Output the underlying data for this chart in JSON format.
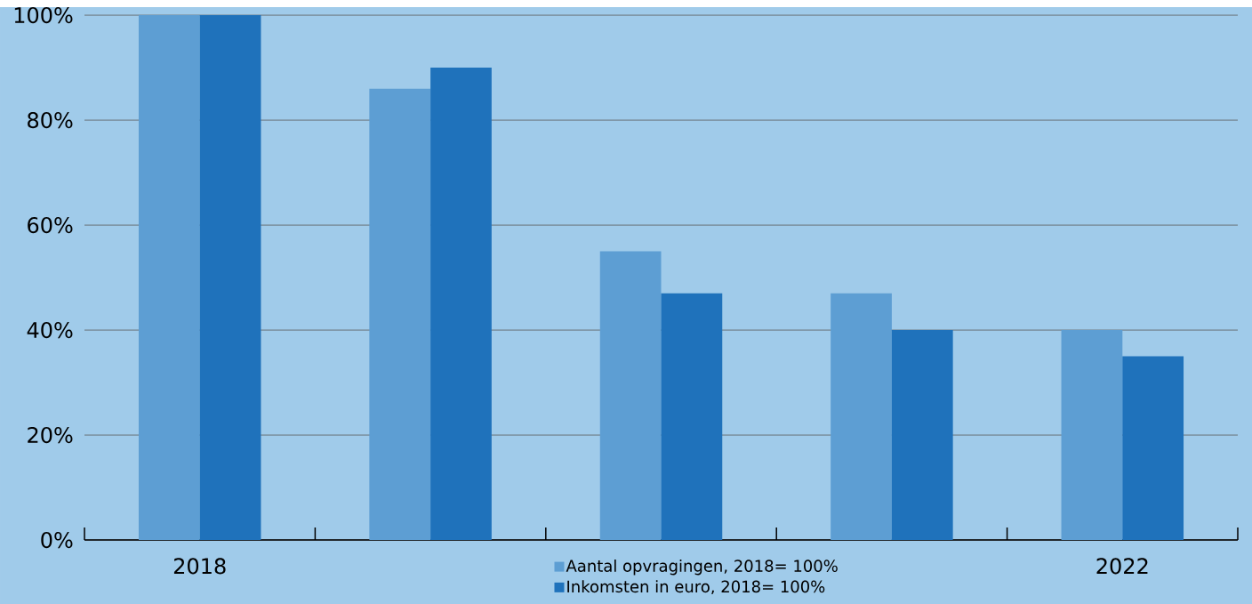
{
  "chart_data": {
    "type": "bar",
    "categories": [
      "2018",
      null,
      null,
      null,
      "2022"
    ],
    "series": [
      {
        "name": "Aantal opvragingen, 2018= 100%",
        "color": "#5d9ed3",
        "values": [
          100,
          86,
          55,
          47,
          40
        ]
      },
      {
        "name": "Inkomsten in euro, 2018= 100%",
        "color": "#1f72bb",
        "values": [
          100,
          90,
          47,
          40,
          35
        ]
      }
    ],
    "ylim": [
      0,
      100
    ],
    "yticks": [
      {
        "value": 0,
        "label": "0%"
      },
      {
        "value": 20,
        "label": "20%"
      },
      {
        "value": 40,
        "label": "40%"
      },
      {
        "value": 60,
        "label": "60%"
      },
      {
        "value": 80,
        "label": "80%"
      },
      {
        "value": 100,
        "label": "100%"
      }
    ],
    "grid": "y",
    "legend": "bottom"
  }
}
